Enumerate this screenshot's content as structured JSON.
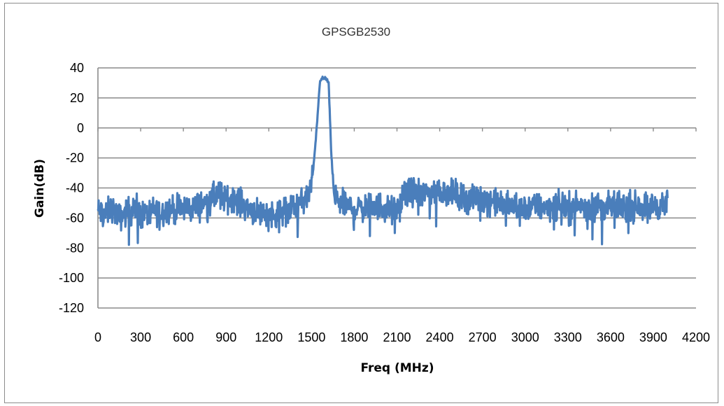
{
  "chart_data": {
    "type": "line",
    "title": "GPSGB2530",
    "xlabel": "Freq (MHz)",
    "ylabel": "Gain(dB)",
    "xlim": [
      0,
      4200
    ],
    "ylim": [
      -120,
      40
    ],
    "x_ticks": [
      0,
      300,
      600,
      900,
      1200,
      1500,
      1800,
      2100,
      2400,
      2700,
      3000,
      3300,
      3600,
      3900,
      4200
    ],
    "y_ticks": [
      40,
      20,
      0,
      -20,
      -40,
      -60,
      -80,
      -100,
      -120
    ],
    "grid": "horizontal",
    "legend": "none",
    "series": [
      {
        "color": "#4a7ebb",
        "x": [
          0,
          50,
          100,
          150,
          200,
          250,
          300,
          350,
          400,
          450,
          500,
          550,
          600,
          650,
          700,
          750,
          800,
          850,
          900,
          950,
          1000,
          1050,
          1100,
          1150,
          1200,
          1250,
          1300,
          1350,
          1400,
          1450,
          1480,
          1500,
          1520,
          1540,
          1560,
          1580,
          1600,
          1620,
          1640,
          1660,
          1700,
          1750,
          1800,
          1850,
          1900,
          1950,
          2000,
          2050,
          2100,
          2150,
          2200,
          2250,
          2300,
          2350,
          2400,
          2450,
          2500,
          2550,
          2600,
          2650,
          2700,
          2750,
          2800,
          2850,
          2900,
          2950,
          3000,
          3050,
          3100,
          3150,
          3200,
          3250,
          3300,
          3350,
          3400,
          3450,
          3500,
          3550,
          3600,
          3650,
          3700,
          3750,
          3800,
          3850,
          3900,
          3950,
          4000
        ],
        "y": [
          -55,
          -58,
          -53,
          -60,
          -56,
          -54,
          -58,
          -57,
          -55,
          -56,
          -54,
          -55,
          -53,
          -54,
          -52,
          -50,
          -47,
          -44,
          -48,
          -46,
          -50,
          -53,
          -55,
          -56,
          -58,
          -57,
          -56,
          -53,
          -52,
          -48,
          -44,
          -38,
          -20,
          5,
          32,
          33,
          33,
          30,
          -20,
          -46,
          -50,
          -52,
          -54,
          -53,
          -53,
          -52,
          -52,
          -55,
          -55,
          -45,
          -42,
          -43,
          -44,
          -42,
          -42,
          -43,
          -44,
          -45,
          -48,
          -47,
          -47,
          -48,
          -50,
          -51,
          -52,
          -53,
          -53,
          -52,
          -53,
          -52,
          -52,
          -51,
          -53,
          -52,
          -52,
          -53,
          -52,
          -52,
          -53,
          -52,
          -52,
          -52,
          -52,
          -52,
          -52,
          -52,
          -51
        ]
      }
    ]
  }
}
